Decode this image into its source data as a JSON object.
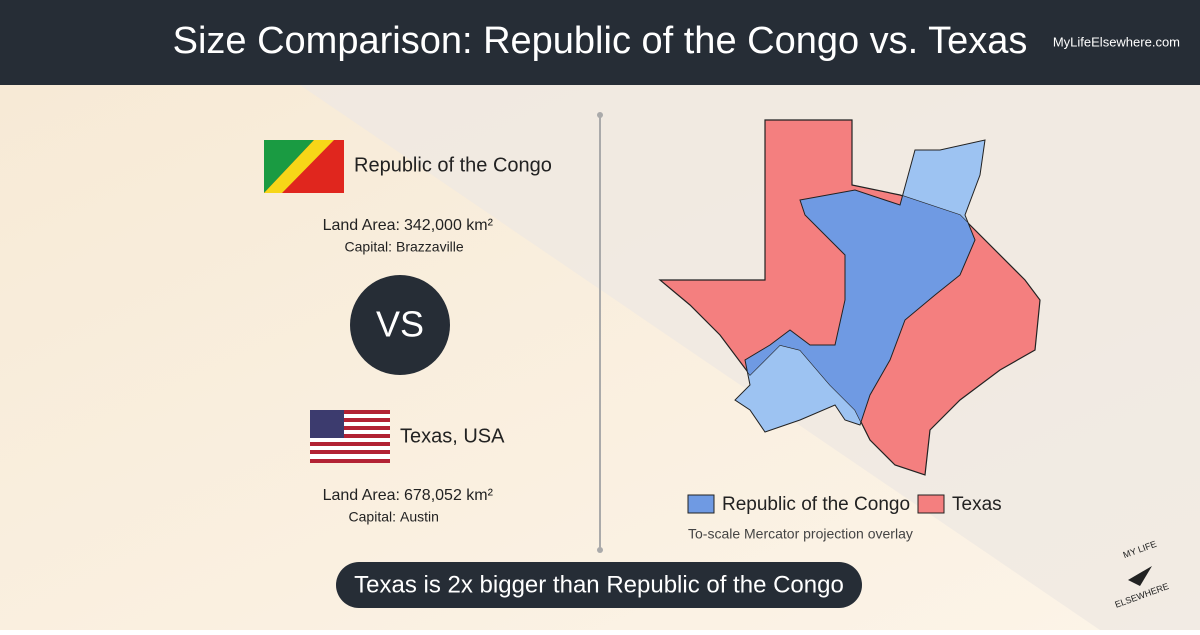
{
  "header": {
    "title": "Size Comparison: Republic of the Congo vs. Texas",
    "site": "MyLifeElsewhere.com"
  },
  "places": [
    {
      "name": "Republic of the Congo",
      "land_area_label": "Land Area:",
      "land_area": "342,000 km²",
      "capital_label": "Capital:",
      "capital": "Brazzaville"
    },
    {
      "name": "Texas, USA",
      "land_area_label": "Land Area:",
      "land_area": "678,052 km²",
      "capital_label": "Capital:",
      "capital": "Austin"
    }
  ],
  "vs": "VS",
  "legend": [
    "Republic of the Congo",
    "Texas"
  ],
  "note": "To-scale Mercator projection overlay",
  "summary": "Texas is 2x bigger than Republic of the Congo",
  "logo": {
    "top": "MY LIFE",
    "bottom": "ELSEWHERE"
  }
}
